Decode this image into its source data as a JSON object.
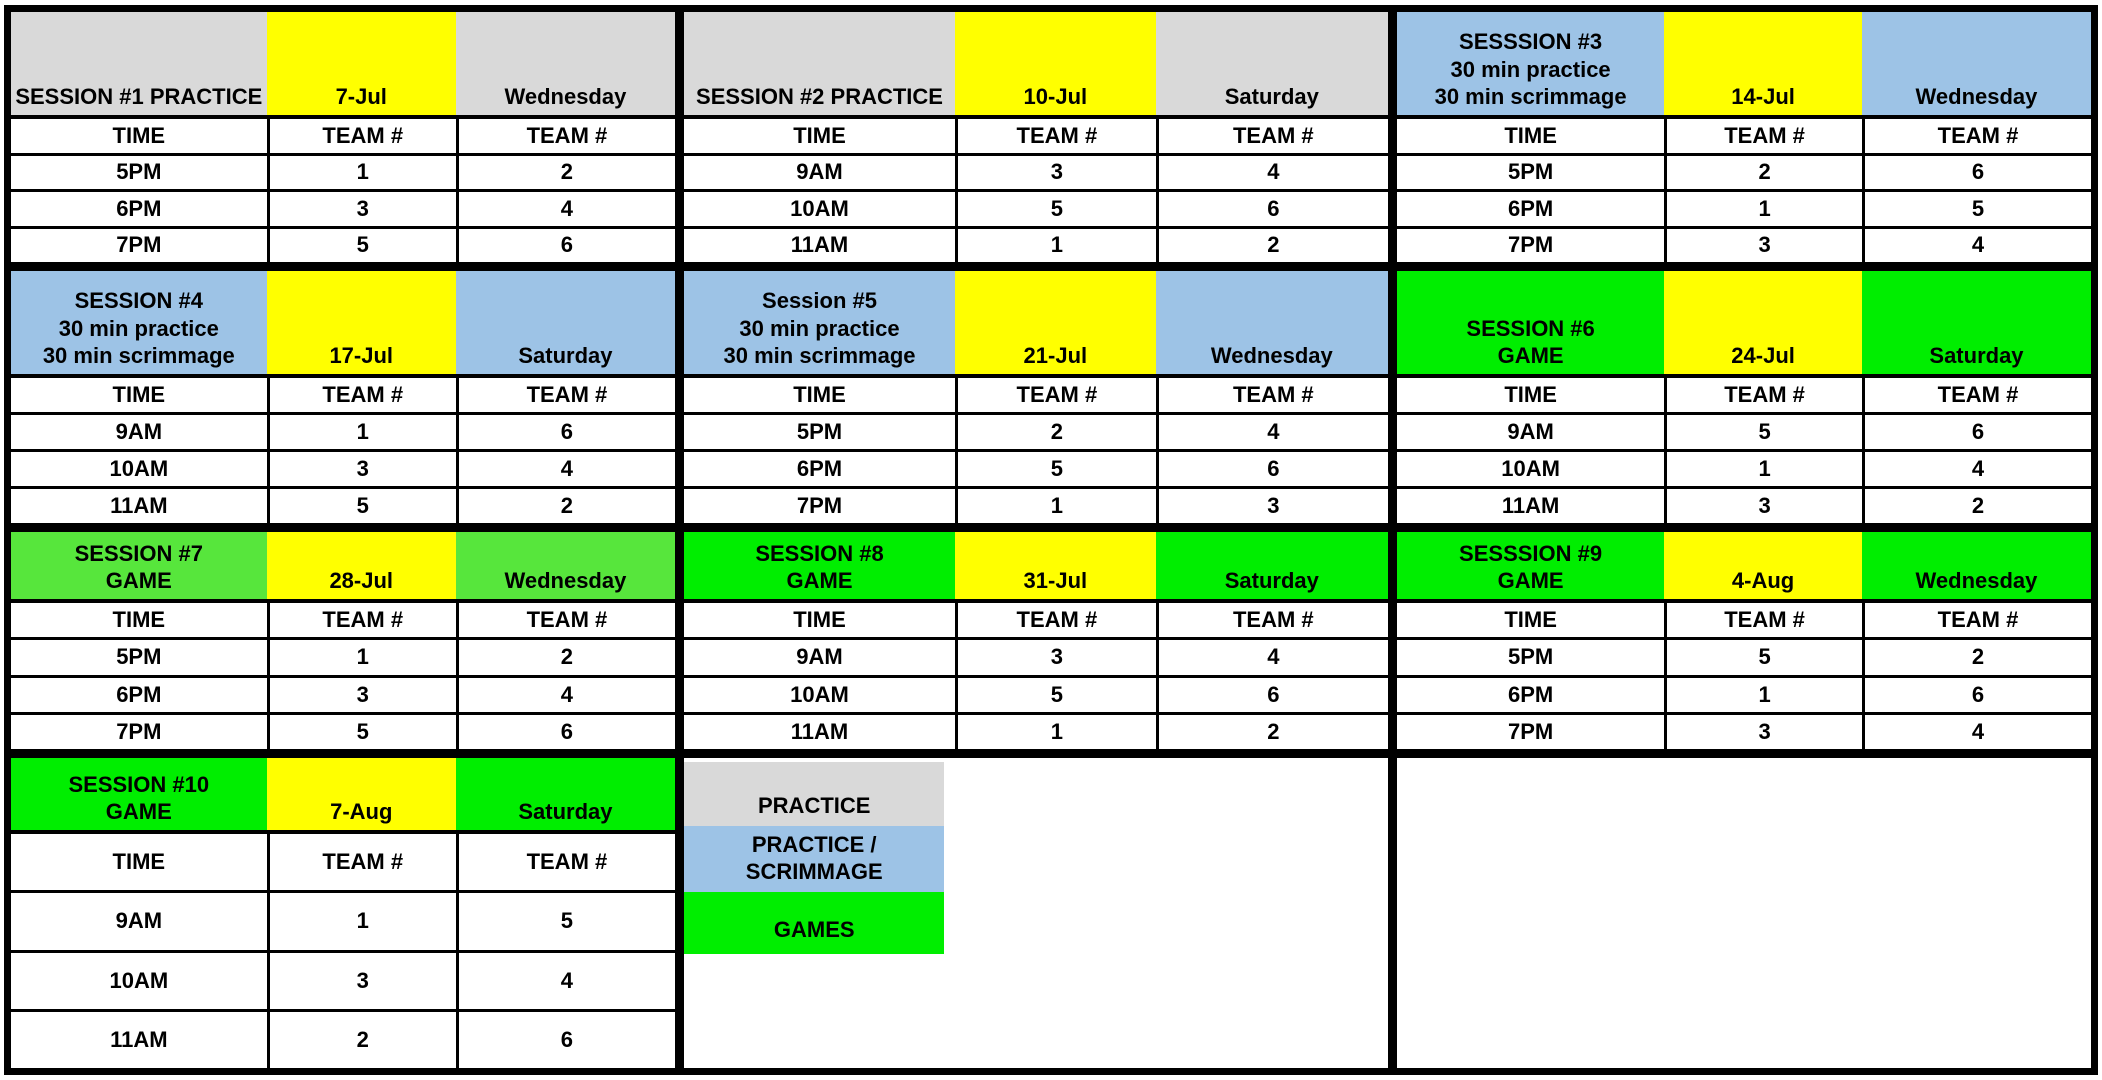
{
  "columns": {
    "time": "TIME",
    "team": "TEAM #"
  },
  "colors": {
    "grey": "#d9d9d9",
    "yellow": "#ffff00",
    "blue": "#9dc3e6",
    "green": "#00ee00",
    "light_green": "#57e63c",
    "border": "#000000",
    "text": "#000000",
    "background": "#ffffff"
  },
  "sessions": [
    {
      "number": 1,
      "title": "SESSION #1 PRACTICE",
      "date": "7-Jul",
      "day": "Wednesday",
      "style": "grey",
      "rows": [
        [
          "5PM",
          "1",
          "2"
        ],
        [
          "6PM",
          "3",
          "4"
        ],
        [
          "7PM",
          "5",
          "6"
        ]
      ]
    },
    {
      "number": 2,
      "title": "SESSION #2 PRACTICE",
      "date": "10-Jul",
      "day": "Saturday",
      "style": "grey",
      "rows": [
        [
          "9AM",
          "3",
          "4"
        ],
        [
          "10AM",
          "5",
          "6"
        ],
        [
          "11AM",
          "1",
          "2"
        ]
      ]
    },
    {
      "number": 3,
      "title": "SESSSION #3\n30 min practice\n30 min scrimmage",
      "date": "14-Jul",
      "day": "Wednesday",
      "style": "blue",
      "rows": [
        [
          "5PM",
          "2",
          "6"
        ],
        [
          "6PM",
          "1",
          "5"
        ],
        [
          "7PM",
          "3",
          "4"
        ]
      ]
    },
    {
      "number": 4,
      "title": "SESSION #4\n30 min practice\n30 min scrimmage",
      "date": "17-Jul",
      "day": "Saturday",
      "style": "blue",
      "rows": [
        [
          "9AM",
          "1",
          "6"
        ],
        [
          "10AM",
          "3",
          "4"
        ],
        [
          "11AM",
          "5",
          "2"
        ]
      ]
    },
    {
      "number": 5,
      "title": "Session #5\n30 min practice\n30 min scrimmage",
      "date": "21-Jul",
      "day": "Wednesday",
      "style": "blue",
      "rows": [
        [
          "5PM",
          "2",
          "4"
        ],
        [
          "6PM",
          "5",
          "6"
        ],
        [
          "7PM",
          "1",
          "3"
        ]
      ]
    },
    {
      "number": 6,
      "title": "SESSION #6\nGAME",
      "date": "24-Jul",
      "day": "Saturday",
      "style": "green",
      "rows": [
        [
          "9AM",
          "5",
          "6"
        ],
        [
          "10AM",
          "1",
          "4"
        ],
        [
          "11AM",
          "3",
          "2"
        ]
      ]
    },
    {
      "number": 7,
      "title": "SESSION #7\nGAME",
      "date": "28-Jul",
      "day": "Wednesday",
      "style": "light_green",
      "rows": [
        [
          "5PM",
          "1",
          "2"
        ],
        [
          "6PM",
          "3",
          "4"
        ],
        [
          "7PM",
          "5",
          "6"
        ]
      ]
    },
    {
      "number": 8,
      "title": "SESSION #8\nGAME",
      "date": "31-Jul",
      "day": "Saturday",
      "style": "green",
      "rows": [
        [
          "9AM",
          "3",
          "4"
        ],
        [
          "10AM",
          "5",
          "6"
        ],
        [
          "11AM",
          "1",
          "2"
        ]
      ]
    },
    {
      "number": 9,
      "title": "SESSSION #9\nGAME",
      "date": "4-Aug",
      "day": "Wednesday",
      "style": "green",
      "rows": [
        [
          "5PM",
          "5",
          "2"
        ],
        [
          "6PM",
          "1",
          "6"
        ],
        [
          "7PM",
          "3",
          "4"
        ]
      ]
    },
    {
      "number": 10,
      "title": "SESSION #10\nGAME",
      "date": "7-Aug",
      "day": "Saturday",
      "style": "green",
      "rows": [
        [
          "9AM",
          "1",
          "5"
        ],
        [
          "10AM",
          "3",
          "4"
        ],
        [
          "11AM",
          "2",
          "6"
        ]
      ]
    }
  ],
  "legend": [
    {
      "label": "PRACTICE",
      "style": "grey"
    },
    {
      "label": "PRACTICE /\nSCRIMMAGE",
      "style": "blue"
    },
    {
      "label": "GAMES",
      "style": "green"
    }
  ]
}
